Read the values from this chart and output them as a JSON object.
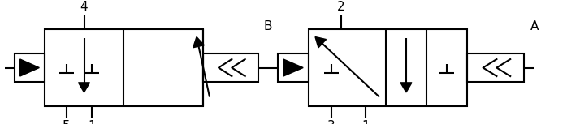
{
  "bg": "#ffffff",
  "lc": "#000000",
  "lw": 1.5,
  "figsize": [
    6.98,
    1.53
  ],
  "dpi": 100,
  "xlim": [
    0,
    698
  ],
  "ylim": [
    0,
    153
  ],
  "v1": {
    "bx": 55,
    "by": 22,
    "bw": 195,
    "bh": 95,
    "d1": 152,
    "d2": 250,
    "p4_x": 104,
    "p5_x": 82,
    "p1_x": 130,
    "sol_x1": 18,
    "sol_y1": 52,
    "sol_x2": 55,
    "sol_y2": 87,
    "spr_x1": 250,
    "spr_y1": 52,
    "spr_x2": 318,
    "spr_y2": 87
  },
  "v2": {
    "bx": 380,
    "by": 22,
    "bw": 195,
    "bh": 95,
    "d1": 475,
    "d2": 525,
    "p2_x": 430,
    "p3_x": 410,
    "p1_x": 455,
    "sol_x1": 342,
    "sol_y1": 52,
    "sol_x2": 380,
    "sol_y2": 87,
    "spr_x1": 575,
    "spr_y1": 52,
    "spr_x2": 645,
    "spr_y2": 87
  },
  "label_B": [
    330,
    128
  ],
  "label_A": [
    658,
    128
  ]
}
